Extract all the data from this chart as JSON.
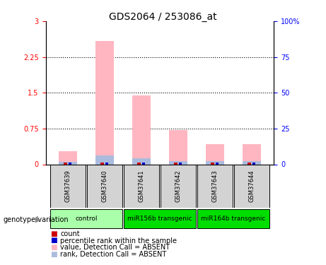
{
  "title": "GDS2064 / 253086_at",
  "samples": [
    "GSM37639",
    "GSM37640",
    "GSM37641",
    "GSM37642",
    "GSM37643",
    "GSM37644"
  ],
  "bar_colors_absent": "#FFB6C1",
  "rank_color_absent": "#AABBDD",
  "count_color": "#CC0000",
  "percentile_color": "#0000CC",
  "values_absent": [
    0.28,
    2.58,
    1.44,
    0.72,
    0.42,
    0.42
  ],
  "ranks_absent": [
    0.05,
    0.18,
    0.13,
    0.07,
    0.06,
    0.06
  ],
  "counts": [
    0.04,
    0.04,
    0.04,
    0.04,
    0.04,
    0.04
  ],
  "percentiles": [
    0.04,
    0.04,
    0.04,
    0.04,
    0.04,
    0.04
  ],
  "ylim_left": [
    0,
    3
  ],
  "ylim_right": [
    0,
    100
  ],
  "yticks_left": [
    0,
    0.75,
    1.5,
    2.25,
    3
  ],
  "ytick_labels_left": [
    "0",
    "0.75",
    "1.5",
    "2.25",
    "3"
  ],
  "yticks_right": [
    0,
    25,
    50,
    75,
    100
  ],
  "ytick_labels_right": [
    "0",
    "25",
    "50",
    "75",
    "100%"
  ],
  "grid_lines": [
    0.75,
    1.5,
    2.25
  ],
  "legend_items": [
    {
      "color": "#CC0000",
      "label": "count"
    },
    {
      "color": "#0000CC",
      "label": "percentile rank within the sample"
    },
    {
      "color": "#FFB6C1",
      "label": "value, Detection Call = ABSENT"
    },
    {
      "color": "#AABBDD",
      "label": "rank, Detection Call = ABSENT"
    }
  ],
  "genotype_label": "genotype/variation",
  "sample_box_color": "#D3D3D3",
  "group_configs": [
    {
      "label": "control",
      "start": 0,
      "end": 1,
      "color": "#AAFFAA"
    },
    {
      "label": "miR156b transgenic",
      "start": 2,
      "end": 3,
      "color": "#00DD00"
    },
    {
      "label": "miR164b transgenic",
      "start": 4,
      "end": 5,
      "color": "#00DD00"
    }
  ]
}
